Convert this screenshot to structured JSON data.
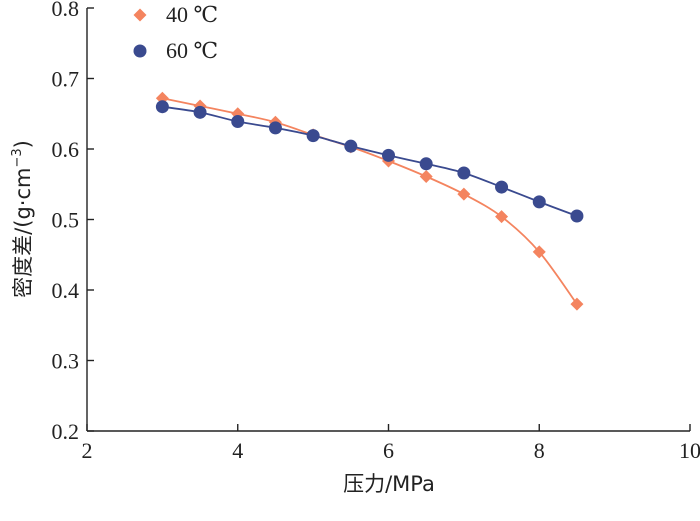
{
  "chart_data": {
    "type": "line",
    "title": "",
    "xlabel": "压力/MPa",
    "ylabel_main": "密度差/(g·cm",
    "ylabel_sup": "−3",
    "ylabel_close": ")",
    "xlim": [
      2,
      10
    ],
    "ylim": [
      0.2,
      0.8
    ],
    "xticks": [
      2,
      4,
      6,
      8,
      10
    ],
    "yticks": [
      0.2,
      0.3,
      0.4,
      0.5,
      0.6,
      0.7,
      0.8
    ],
    "xtick_labels": [
      "2",
      "4",
      "6",
      "8",
      "10"
    ],
    "ytick_labels": [
      "0.2",
      "0.3",
      "0.4",
      "0.5",
      "0.6",
      "0.7",
      "0.8"
    ],
    "grid": false,
    "legend_position": "top-left",
    "series": [
      {
        "name": "40 ℃",
        "marker": "diamond",
        "color": "#f4845f",
        "x": [
          3.0,
          3.5,
          4.0,
          4.5,
          5.0,
          5.5,
          6.0,
          6.5,
          7.0,
          7.5,
          8.0,
          8.5
        ],
        "y": [
          0.672,
          0.661,
          0.65,
          0.638,
          0.62,
          0.603,
          0.583,
          0.561,
          0.536,
          0.504,
          0.454,
          0.38
        ]
      },
      {
        "name": "60 ℃",
        "marker": "circle",
        "color": "#3a4a8f",
        "x": [
          3.0,
          3.5,
          4.0,
          4.5,
          5.0,
          5.5,
          6.0,
          6.5,
          7.0,
          7.5,
          8.0,
          8.5
        ],
        "y": [
          0.66,
          0.652,
          0.639,
          0.63,
          0.619,
          0.604,
          0.591,
          0.579,
          0.566,
          0.546,
          0.525,
          0.505
        ]
      }
    ]
  }
}
